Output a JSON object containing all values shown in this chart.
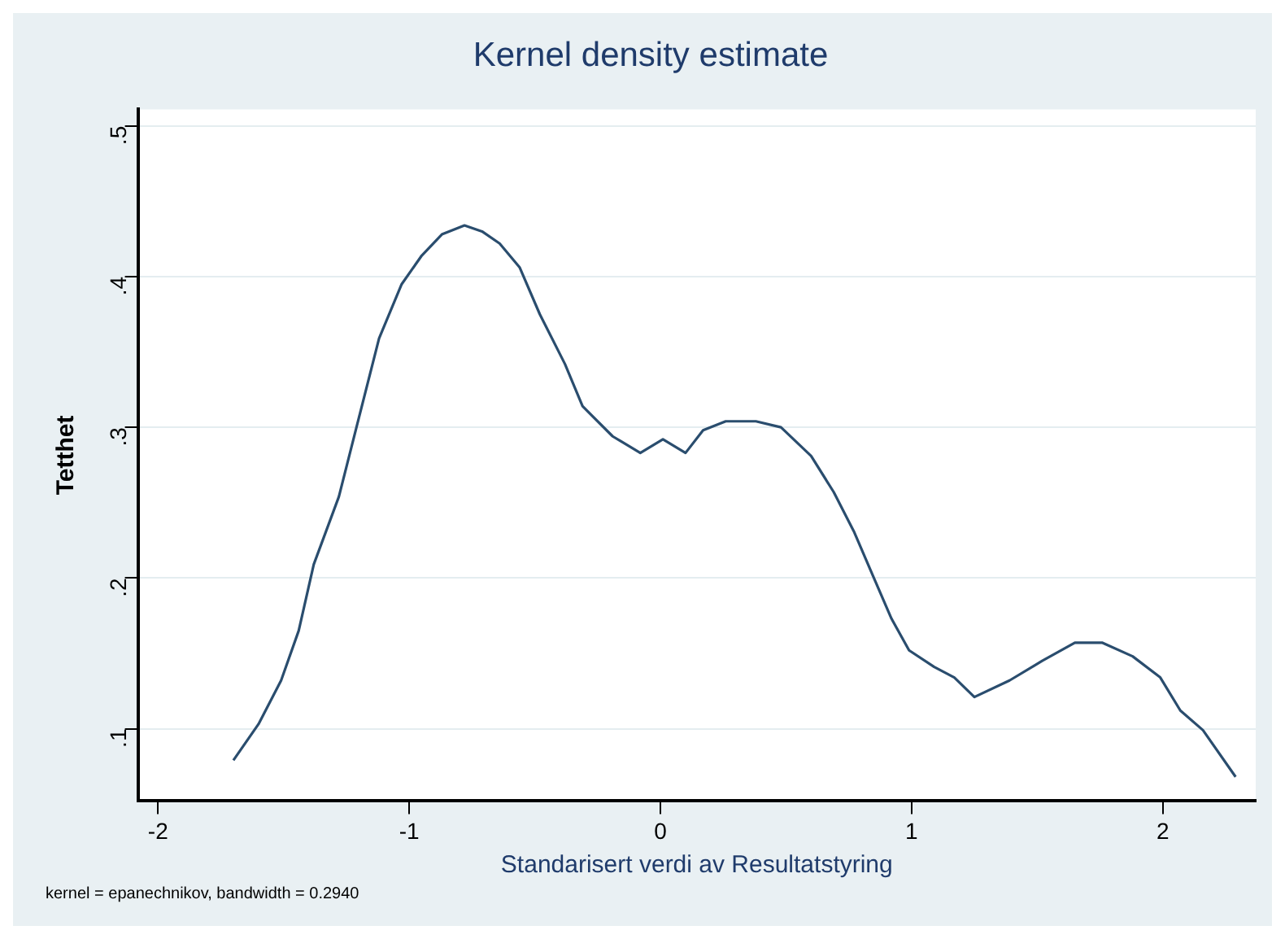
{
  "chart_data": {
    "type": "line",
    "title": "Kernel density estimate",
    "xlabel": "Standarisert verdi av Resultatstyring",
    "ylabel": "Tetthet",
    "annotations": [
      "kernel = epanechnikov, bandwidth = 0.2940"
    ],
    "xlim": [
      -2.08,
      2.37
    ],
    "xticks": [
      {
        "value": -2,
        "label": "-2"
      },
      {
        "value": -1,
        "label": "-1"
      },
      {
        "value": 0,
        "label": "0"
      },
      {
        "value": 1,
        "label": "1"
      },
      {
        "value": 2,
        "label": "2"
      }
    ],
    "ylim": [
      0.052,
      0.511
    ],
    "yticks": [
      {
        "value": 0.1,
        "label": ".1"
      },
      {
        "value": 0.2,
        "label": ".2"
      },
      {
        "value": 0.3,
        "label": ".3"
      },
      {
        "value": 0.4,
        "label": ".4"
      },
      {
        "value": 0.5,
        "label": ".5"
      }
    ],
    "grid": "y",
    "legend": false,
    "marker": "none",
    "line_style": "solid",
    "series": [
      {
        "color": "#2a4d6e",
        "x": [
          -1.7,
          -1.6,
          -1.51,
          -1.44,
          -1.38,
          -1.28,
          -1.21,
          -1.12,
          -1.03,
          -0.95,
          -0.87,
          -0.78,
          -0.71,
          -0.64,
          -0.56,
          -0.48,
          -0.38,
          -0.31,
          -0.19,
          -0.08,
          0.01,
          0.1,
          0.17,
          0.26,
          0.38,
          0.48,
          0.6,
          0.69,
          0.77,
          0.85,
          0.92,
          0.99,
          1.09,
          1.17,
          1.25,
          1.39,
          1.52,
          1.65,
          1.76,
          1.88,
          1.99,
          2.07,
          2.16,
          2.29
        ],
        "values": [
          0.079,
          0.103,
          0.132,
          0.165,
          0.209,
          0.254,
          0.3,
          0.359,
          0.395,
          0.414,
          0.428,
          0.434,
          0.43,
          0.422,
          0.406,
          0.375,
          0.342,
          0.314,
          0.294,
          0.283,
          0.292,
          0.283,
          0.298,
          0.304,
          0.304,
          0.3,
          0.281,
          0.257,
          0.231,
          0.2,
          0.173,
          0.152,
          0.141,
          0.134,
          0.121,
          0.132,
          0.145,
          0.157,
          0.157,
          0.148,
          0.134,
          0.112,
          0.099,
          0.068
        ]
      }
    ]
  }
}
